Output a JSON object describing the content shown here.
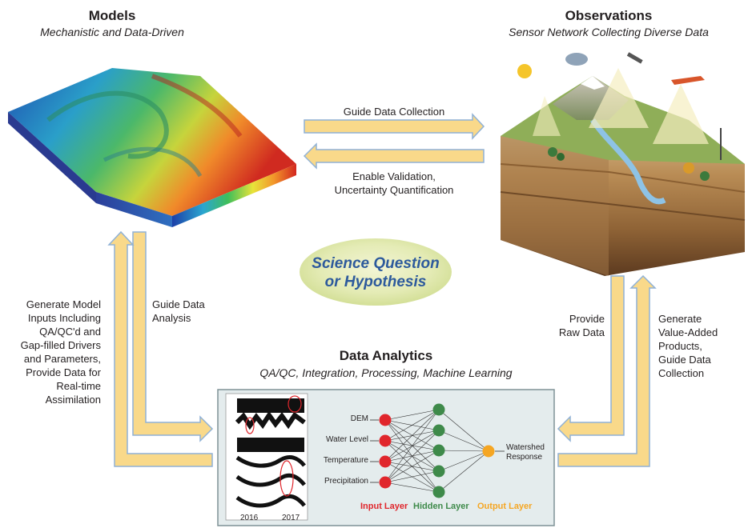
{
  "models": {
    "title": "Models",
    "subtitle": "Mechanistic and Data-Driven"
  },
  "observations": {
    "title": "Observations",
    "subtitle": "Sensor Network Collecting Diverse Data"
  },
  "analytics": {
    "title": "Data Analytics",
    "subtitle": "QA/QC, Integration, Processing, Machine Learning"
  },
  "center": {
    "line1": "Science Question",
    "line2": "or Hypothesis"
  },
  "arrows": {
    "guide_collection": "Guide Data Collection",
    "enable_validation": [
      "Enable Validation,",
      "Uncertainty Quantification"
    ],
    "guide_analysis": [
      "Guide Data",
      "Analysis"
    ],
    "generate_inputs": [
      "Generate Model",
      "Inputs Including",
      "QA/QC'd and",
      "Gap-filled Drivers",
      "and Parameters,",
      "Provide Data for",
      "Real-time",
      "Assimilation"
    ],
    "provide_raw": [
      "Provide",
      "Raw Data"
    ],
    "value_added": [
      "Generate",
      "Value-Added",
      "Products,",
      "Guide Data",
      "Collection"
    ]
  },
  "network": {
    "inputs": [
      "DEM",
      "Water Level",
      "Temperature",
      "Precipitation"
    ],
    "output": [
      "Watershed",
      "Response"
    ],
    "layers": {
      "input": "Input Layer",
      "hidden": "Hidden Layer",
      "output": "Output Layer"
    }
  },
  "timeseries": {
    "year_a": "2016",
    "year_b": "2017"
  },
  "colors": {
    "arrow_fill": "#f9d98a",
    "arrow_stroke": "#8fb1d6",
    "input": "#e0262c",
    "hidden": "#3e8a4a",
    "output": "#f5a623",
    "title_blue": "#2d5a9c"
  }
}
